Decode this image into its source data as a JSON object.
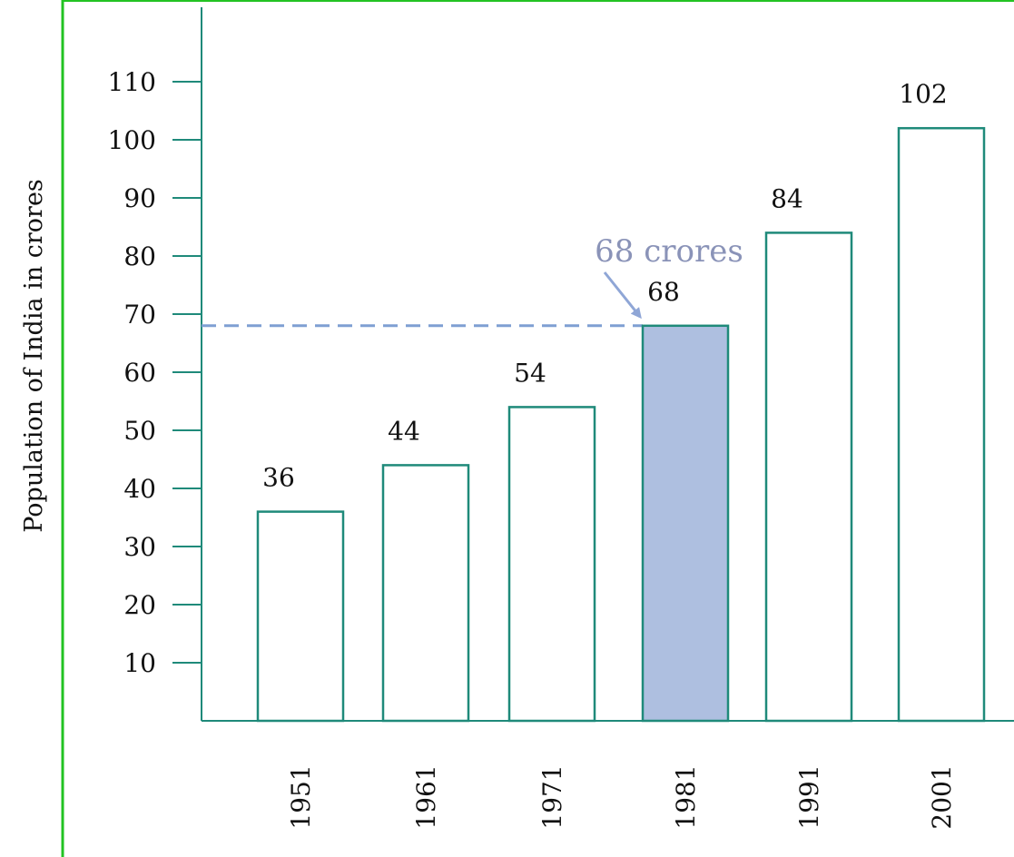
{
  "chart_data": {
    "type": "bar",
    "categories": [
      "1951",
      "1961",
      "1971",
      "1981",
      "1991",
      "2001"
    ],
    "values": [
      36,
      44,
      54,
      68,
      84,
      102
    ],
    "ylabel": "Population of India in crores",
    "xlabel": "",
    "yticks": [
      10,
      20,
      30,
      40,
      50,
      60,
      70,
      80,
      90,
      100,
      110
    ],
    "highlight": {
      "category": "1981",
      "value": 68,
      "label": "68 crores",
      "fill_color": "#aebfe0"
    },
    "colors": {
      "bar_stroke": "#1f8a7a",
      "axis": "#1f8a7a",
      "frame_accent": "#22c322",
      "annotation": "#8a93b8",
      "guide_line": "#7f9fd3"
    },
    "grid": false,
    "legend": "none"
  }
}
